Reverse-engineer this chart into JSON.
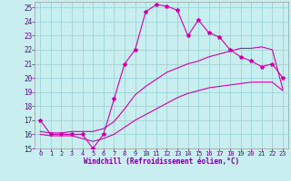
{
  "xlabel": "Windchill (Refroidissement éolien,°C)",
  "bg_color": "#c8eef0",
  "grid_color": "#a0d8dc",
  "line_color": "#cc00aa",
  "xlim": [
    -0.5,
    23.5
  ],
  "ylim": [
    15,
    25.4
  ],
  "yticks": [
    15,
    16,
    17,
    18,
    19,
    20,
    21,
    22,
    23,
    24,
    25
  ],
  "xticks": [
    0,
    1,
    2,
    3,
    4,
    5,
    6,
    7,
    8,
    9,
    10,
    11,
    12,
    13,
    14,
    15,
    16,
    17,
    18,
    19,
    20,
    21,
    22,
    23
  ],
  "curve1_x": [
    0,
    1,
    2,
    3,
    4,
    5,
    6,
    7,
    8,
    9,
    10,
    11,
    12,
    13,
    14,
    15,
    16,
    17,
    18,
    19,
    20,
    21,
    22,
    23
  ],
  "curve1_y": [
    17.0,
    16.0,
    16.0,
    16.0,
    16.0,
    15.0,
    16.0,
    18.5,
    21.0,
    22.0,
    24.7,
    25.2,
    25.1,
    24.8,
    23.0,
    24.1,
    23.2,
    22.9,
    22.0,
    21.5,
    21.2,
    20.8,
    21.0,
    20.0
  ],
  "curve2_x": [
    0,
    1,
    2,
    3,
    4,
    5,
    6,
    7,
    8,
    9,
    10,
    11,
    12,
    13,
    14,
    15,
    16,
    17,
    18,
    19,
    20,
    21,
    22,
    23
  ],
  "curve2_y": [
    16.2,
    16.1,
    16.1,
    16.2,
    16.2,
    16.2,
    16.4,
    16.9,
    17.8,
    18.8,
    19.4,
    19.9,
    20.4,
    20.7,
    21.0,
    21.2,
    21.5,
    21.7,
    21.9,
    22.1,
    22.1,
    22.2,
    22.0,
    19.2
  ],
  "curve3_x": [
    0,
    1,
    2,
    3,
    4,
    5,
    6,
    7,
    8,
    9,
    10,
    11,
    12,
    13,
    14,
    15,
    16,
    17,
    18,
    19,
    20,
    21,
    22,
    23
  ],
  "curve3_y": [
    16.0,
    15.9,
    15.9,
    15.9,
    15.7,
    15.5,
    15.7,
    16.0,
    16.5,
    17.0,
    17.4,
    17.8,
    18.2,
    18.6,
    18.9,
    19.1,
    19.3,
    19.4,
    19.5,
    19.6,
    19.7,
    19.7,
    19.7,
    19.1
  ]
}
